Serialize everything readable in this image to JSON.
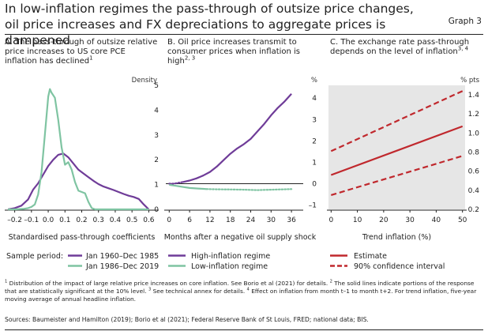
{
  "header": {
    "title": "In low-inflation regimes the pass-through of outsize price changes, oil price increases and FX depreciations to aggregate prices is dampened",
    "graph_label": "Graph 3"
  },
  "footer": {
    "footnote_1": "Distribution of the impact of large relative price increases on core inflation. See Borio et al (2021) for details.",
    "footnote_2": "The solid lines indicate portions of the response that are statistically significant at the 10% level.",
    "footnote_3": "See technical annex for details.",
    "footnote_4": "Effect on inflation from month t–1 to month t+2. For trend inflation, five-year moving average of annual headline inflation.",
    "sources": "Sources: Baumeister and Hamilton (2019); Borio et al (2021); Federal Reserve Bank of St Louis, FRED; national data; BIS."
  },
  "chart_data": [
    {
      "type": "line",
      "title": "A. The pass-through of outsize relative price increases to US core PCE inflation has declined",
      "title_sup": "1",
      "ylabel": "Density",
      "xlabel": "Standardised pass-through coefficients",
      "xlim": [
        -0.25,
        0.65
      ],
      "ylim": [
        0,
        5
      ],
      "xticks": [
        "–0.2",
        "–0.1",
        "0.0",
        "0.1",
        "0.2",
        "0.3",
        "0.4",
        "0.5",
        "0.6"
      ],
      "xtick_values": [
        -0.2,
        -0.1,
        0.0,
        0.1,
        0.2,
        0.3,
        0.4,
        0.5,
        0.6
      ],
      "yticks": [
        "0",
        "1",
        "2",
        "3",
        "4",
        "5"
      ],
      "ytick_values": [
        0,
        1,
        2,
        3,
        4,
        5
      ],
      "sample_period_label": "Sample period:",
      "series": [
        {
          "name": "Jan 1960–Dec 1985",
          "color": "#6f3c98",
          "style": "solid",
          "x": [
            -0.24,
            -0.2,
            -0.16,
            -0.12,
            -0.09,
            -0.06,
            -0.03,
            0.0,
            0.03,
            0.06,
            0.09,
            0.12,
            0.15,
            0.18,
            0.21,
            0.24,
            0.27,
            0.3,
            0.33,
            0.36,
            0.39,
            0.42,
            0.45,
            0.48,
            0.51,
            0.54,
            0.57,
            0.6
          ],
          "y": [
            0.0,
            0.05,
            0.15,
            0.4,
            0.8,
            1.05,
            1.4,
            1.75,
            2.0,
            2.2,
            2.25,
            2.1,
            1.85,
            1.6,
            1.45,
            1.3,
            1.15,
            1.02,
            0.92,
            0.85,
            0.78,
            0.7,
            0.62,
            0.55,
            0.5,
            0.42,
            0.2,
            0.0
          ]
        },
        {
          "name": "Jan 1986–Dec 2019",
          "color": "#7fc4a2",
          "style": "solid",
          "x": [
            -0.24,
            -0.2,
            -0.15,
            -0.12,
            -0.1,
            -0.08,
            -0.06,
            -0.04,
            -0.02,
            0.0,
            0.01,
            0.02,
            0.04,
            0.06,
            0.08,
            0.1,
            0.12,
            0.14,
            0.16,
            0.18,
            0.2,
            0.22,
            0.24,
            0.26,
            0.28,
            0.3,
            0.4,
            0.5,
            0.6
          ],
          "y": [
            0.0,
            0.0,
            0.02,
            0.05,
            0.1,
            0.2,
            0.6,
            1.5,
            3.0,
            4.55,
            4.85,
            4.7,
            4.5,
            3.6,
            2.5,
            1.8,
            1.9,
            1.6,
            1.1,
            0.75,
            0.7,
            0.65,
            0.3,
            0.05,
            0.0,
            0.0,
            0.0,
            0.0,
            0.0
          ]
        }
      ]
    },
    {
      "type": "line",
      "title": "B. Oil price increases transmit to consumer prices when inflation is high",
      "title_sup": "2, 3",
      "ylabel": "%",
      "xlabel": "Months after a negative oil supply shock",
      "xlim": [
        -1,
        39
      ],
      "ylim": [
        -1.2,
        4.6
      ],
      "xticks": [
        "0",
        "6",
        "12",
        "18",
        "24",
        "30",
        "36"
      ],
      "xtick_values": [
        0,
        6,
        12,
        18,
        24,
        30,
        36
      ],
      "yticks": [
        "–1",
        "0",
        "1",
        "2",
        "3",
        "4"
      ],
      "ytick_values": [
        -1,
        0,
        1,
        2,
        3,
        4
      ],
      "zero_line": true,
      "series": [
        {
          "name": "High-inflation regime",
          "color": "#6f3c98",
          "segments": [
            {
              "style": "dotted",
              "x": [
                0,
                1,
                2,
                3,
                4
              ],
              "y": [
                0.0,
                0.0,
                0.02,
                0.05,
                0.08
              ]
            },
            {
              "style": "solid",
              "x": [
                4,
                6,
                8,
                10,
                12,
                14,
                16,
                18,
                20,
                22,
                24,
                26,
                28,
                30,
                32,
                34,
                36
              ],
              "y": [
                0.08,
                0.15,
                0.25,
                0.38,
                0.55,
                0.8,
                1.1,
                1.4,
                1.65,
                1.85,
                2.1,
                2.45,
                2.8,
                3.2,
                3.55,
                3.85,
                4.2
              ]
            }
          ]
        },
        {
          "name": "Low-inflation regime",
          "color": "#7fc4a2",
          "segments": [
            {
              "style": "solid",
              "x": [
                0,
                2,
                4,
                6,
                8,
                10,
                11
              ],
              "y": [
                -0.05,
                -0.1,
                -0.15,
                -0.2,
                -0.22,
                -0.24,
                -0.25
              ]
            },
            {
              "style": "dotted",
              "x": [
                11,
                14,
                18,
                22,
                26,
                30,
                34,
                36
              ],
              "y": [
                -0.25,
                -0.26,
                -0.27,
                -0.28,
                -0.3,
                -0.28,
                -0.26,
                -0.25
              ]
            }
          ]
        }
      ]
    },
    {
      "type": "line",
      "title": "C. The exchange rate pass-through depends on the level of inflation",
      "title_sup": "3, 4",
      "ylabel": "% pts",
      "xlabel": "Trend inflation (%)",
      "xlim": [
        -1,
        51
      ],
      "ylim": [
        0.2,
        1.5
      ],
      "xticks": [
        "0",
        "10",
        "20",
        "30",
        "40",
        "50"
      ],
      "xtick_values": [
        0,
        10,
        20,
        30,
        40,
        50
      ],
      "yticks": [
        "0.2",
        "0.4",
        "0.6",
        "0.8",
        "1.0",
        "1.2",
        "1.4"
      ],
      "ytick_values": [
        0.2,
        0.4,
        0.6,
        0.8,
        1.0,
        1.2,
        1.4
      ],
      "background": "#e6e6e6",
      "series": [
        {
          "name": "Estimate",
          "color": "#c0282d",
          "style": "solid",
          "x": [
            0,
            50
          ],
          "y": [
            0.56,
            1.07
          ]
        },
        {
          "name": "90% confidence interval",
          "color": "#c0282d",
          "style": "dashed",
          "x": [
            0,
            50
          ],
          "y": [
            0.81,
            1.44
          ],
          "legend": true
        },
        {
          "name": "90% confidence interval",
          "color": "#c0282d",
          "style": "dashed",
          "x": [
            0,
            50
          ],
          "y": [
            0.35,
            0.76
          ],
          "legend": false
        }
      ]
    }
  ]
}
